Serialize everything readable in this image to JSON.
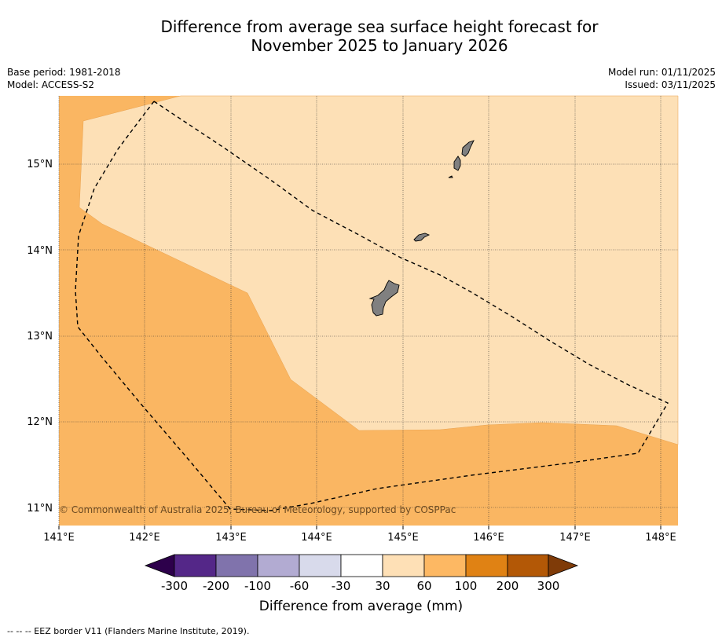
{
  "header": {
    "title_line1": "Difference from average sea surface height forecast for",
    "title_line2": "November 2025 to January 2026",
    "base_period": "Base period: 1981-2018",
    "model": "Model: ACCESS-S2",
    "model_run": "Model run: 01/11/2025",
    "issued": "Issued: 03/11/2025"
  },
  "map": {
    "lon_range": [
      141.0,
      148.2
    ],
    "lat_range": [
      10.8,
      15.8
    ],
    "lon_ticks": [
      "141°E",
      "142°E",
      "143°E",
      "144°E",
      "145°E",
      "146°E",
      "147°E",
      "148°E"
    ],
    "lat_ticks": [
      "15°N",
      "14°N",
      "13°N",
      "12°N",
      "11°N"
    ],
    "credit": "© Commonwealth of Australia 2025, Bureau of Meteorology, supported by COSPPac",
    "regions": [
      {
        "name": "anomaly-60-100mm",
        "fill": "#fab662"
      },
      {
        "name": "anomaly-30-60mm",
        "fill": "#fde0b6"
      }
    ],
    "land_fill": "#808080",
    "islands": [
      "Guam",
      "Rota",
      "Tinian",
      "Saipan"
    ]
  },
  "colorbar": {
    "ticks": [
      "-300",
      "-200",
      "-100",
      "-60",
      "-30",
      "30",
      "60",
      "100",
      "200",
      "300"
    ],
    "colors": [
      "#2d004b",
      "#542788",
      "#8073ac",
      "#b2abd2",
      "#d8daeb",
      "#ffffff",
      "#fee0b6",
      "#fdb863",
      "#e08214",
      "#b35806",
      "#7f3b08"
    ],
    "label": "Difference from average (mm)"
  },
  "footer": {
    "legend": "--  --  -- EEZ border V11 (Flanders Marine Institute, 2019)."
  }
}
